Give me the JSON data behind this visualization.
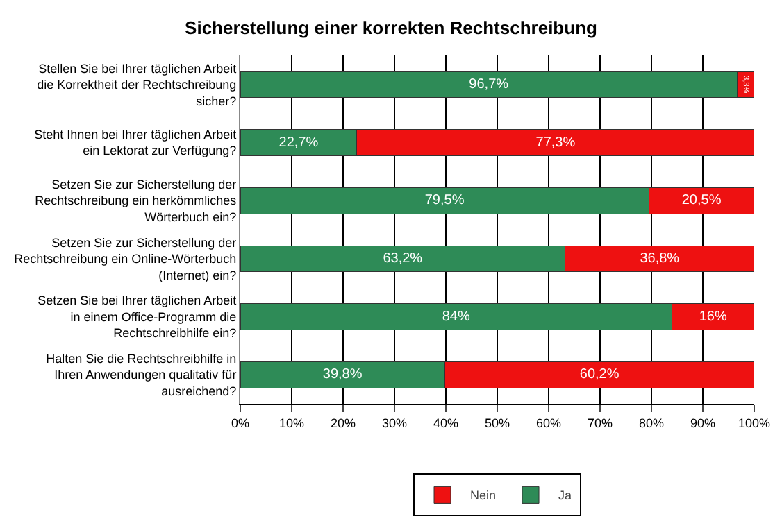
{
  "chart_data": {
    "type": "bar",
    "orientation": "horizontal",
    "stacked": true,
    "title": "Sicherstellung einer korrekten Rechtschreibung",
    "categories": [
      "Stellen Sie bei Ihrer täglichen Arbeit die Korrektheit der Rechtschreibung sicher?",
      "Steht Ihnen bei Ihrer täglichen Arbeit ein Lektorat zur Verfügung?",
      "Setzen Sie zur Sicherstellung der Rechtschreibung ein herkömmliches Wörterbuch ein?",
      "Setzen Sie zur Sicherstellung der Rechtschreibung ein Online-Wörterbuch (Internet) ein?",
      "Setzen Sie bei Ihrer täglichen Arbeit in einem Office-Programm die Rechtschreibhilfe ein?",
      "Halten Sie die Rechtschreibhilfe in Ihren Anwendungen qualitativ für ausreichend?"
    ],
    "series": [
      {
        "name": "Ja",
        "color": "#2e8b57",
        "values": [
          96.7,
          22.7,
          79.5,
          63.2,
          84,
          39.8
        ],
        "value_labels": [
          "96,7%",
          "22,7%",
          "79,5%",
          "63,2%",
          "84%",
          "39,8%"
        ]
      },
      {
        "name": "Nein",
        "color": "#ee1111",
        "values": [
          3.3,
          77.3,
          20.5,
          36.8,
          16,
          60.2
        ],
        "value_labels": [
          "3,3%",
          "77,3%",
          "20,5%",
          "36,8%",
          "16%",
          "60,2%"
        ]
      }
    ],
    "xlim": [
      0,
      100
    ],
    "xticks": [
      {
        "value": 0,
        "label": "0%"
      },
      {
        "value": 10,
        "label": "10%"
      },
      {
        "value": 20,
        "label": "20%"
      },
      {
        "value": 30,
        "label": "30%"
      },
      {
        "value": 40,
        "label": "40%"
      },
      {
        "value": 50,
        "label": "50%"
      },
      {
        "value": 60,
        "label": "60%"
      },
      {
        "value": 70,
        "label": "70%"
      },
      {
        "value": 80,
        "label": "80%"
      },
      {
        "value": 90,
        "label": "90%"
      },
      {
        "value": 100,
        "label": "100%"
      }
    ],
    "grid": "x",
    "legend": "bottom"
  }
}
